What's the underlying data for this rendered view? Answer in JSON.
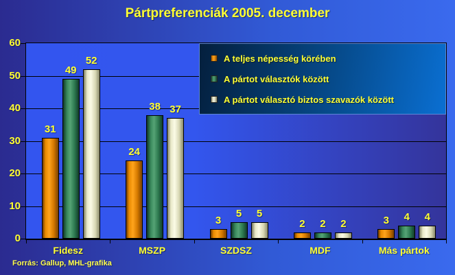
{
  "title": "Pártpreferenciák 2005. december",
  "footer": "Forrás: Gallup, MHL-grafika",
  "colors": {
    "background_left": "#2B2B90",
    "background_right": "#3A6AEE",
    "plot_left": "#3355EF",
    "plot_right": "#34349B",
    "text_yellow": "#FFFF33",
    "gridline": "#000000",
    "legend_bg_dark": "#041F3D",
    "legend_bg_light": "#0A6FD2",
    "series_orange": "#F79100",
    "series_green": "#3E9065",
    "series_cream": "#F2F2D2"
  },
  "chart_data": {
    "type": "bar",
    "title": "Pártpreferenciák 2005. december",
    "categories": [
      "Fidesz",
      "MSZP",
      "SZDSZ",
      "MDF",
      "Más pártok"
    ],
    "series": [
      {
        "name": "A teljes népesség körében",
        "color": "#F79100",
        "values": [
          31,
          24,
          3,
          2,
          3
        ]
      },
      {
        "name": "A pártot választók között",
        "color": "#3E9065",
        "values": [
          49,
          38,
          5,
          2,
          4
        ]
      },
      {
        "name": "A pártot választó biztos szavazók között",
        "color": "#F2F2D2",
        "values": [
          52,
          37,
          5,
          2,
          4
        ]
      }
    ],
    "xlabel": "",
    "ylabel": "",
    "ylim": [
      0,
      60
    ],
    "ytick_step": 10,
    "grid": true,
    "value_labels": true,
    "legend_position": "top-right",
    "source": "Forrás: Gallup, MHL-grafika"
  }
}
